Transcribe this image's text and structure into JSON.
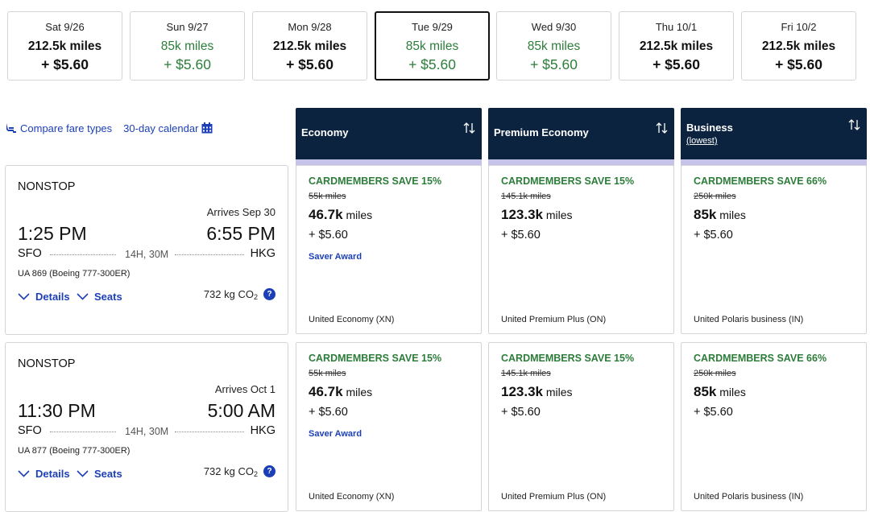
{
  "dates": [
    {
      "date": "Sat 9/26",
      "miles": "212.5k miles",
      "tax": "+ $5.60",
      "state": "normal"
    },
    {
      "date": "Sun 9/27",
      "miles": "85k miles",
      "tax": "+ $5.60",
      "state": "green"
    },
    {
      "date": "Mon 9/28",
      "miles": "212.5k miles",
      "tax": "+ $5.60",
      "state": "normal"
    },
    {
      "date": "Tue 9/29",
      "miles": "85k miles",
      "tax": "+ $5.60",
      "state": "selected"
    },
    {
      "date": "Wed 9/30",
      "miles": "85k miles",
      "tax": "+ $5.60",
      "state": "green"
    },
    {
      "date": "Thu 10/1",
      "miles": "212.5k miles",
      "tax": "+ $5.60",
      "state": "normal"
    },
    {
      "date": "Fri 10/2",
      "miles": "212.5k miles",
      "tax": "+ $5.60",
      "state": "normal"
    }
  ],
  "toolbar": {
    "compare_label": "Compare fare types",
    "compare_icon": "seat-icon",
    "calendar_label": "30-day calendar",
    "calendar_icon": "calendar-icon"
  },
  "columns": [
    {
      "label": "Economy",
      "sub": ""
    },
    {
      "label": "Premium Economy",
      "sub": ""
    },
    {
      "label": "Business",
      "sub": "(lowest)"
    }
  ],
  "flights": [
    {
      "stops": "NONSTOP",
      "arrives": "Arrives Sep 30",
      "dep_time": "1:25 PM",
      "arr_time": "6:55 PM",
      "origin": "SFO",
      "dest": "HKG",
      "duration": "14H, 30M",
      "aircraft": "UA 869 (Boeing 777-300ER)",
      "details_label": "Details",
      "seats_label": "Seats",
      "co2_value": "732 kg CO",
      "co2_sub": "2",
      "info_label": "?",
      "fares": [
        {
          "save": "CARDMEMBERS SAVE 15%",
          "old": "55k miles",
          "miles": "46.7k",
          "unit": "miles",
          "tax": "+ $5.60",
          "award": "Saver Award",
          "fare_class": "United Economy (XN)"
        },
        {
          "save": "CARDMEMBERS SAVE 15%",
          "old": "145.1k miles",
          "miles": "123.3k",
          "unit": "miles",
          "tax": "+ $5.60",
          "award": "",
          "fare_class": "United Premium Plus (ON)"
        },
        {
          "save": "CARDMEMBERS SAVE 66%",
          "old": "250k miles",
          "miles": "85k",
          "unit": "miles",
          "tax": "+ $5.60",
          "award": "",
          "fare_class": "United Polaris business (IN)"
        }
      ]
    },
    {
      "stops": "NONSTOP",
      "arrives": "Arrives Oct 1",
      "dep_time": "11:30 PM",
      "arr_time": "5:00 AM",
      "origin": "SFO",
      "dest": "HKG",
      "duration": "14H, 30M",
      "aircraft": "UA 877 (Boeing 777-300ER)",
      "details_label": "Details",
      "seats_label": "Seats",
      "co2_value": "732 kg CO",
      "co2_sub": "2",
      "info_label": "?",
      "fares": [
        {
          "save": "CARDMEMBERS SAVE 15%",
          "old": "55k miles",
          "miles": "46.7k",
          "unit": "miles",
          "tax": "+ $5.60",
          "award": "Saver Award",
          "fare_class": "United Economy (XN)"
        },
        {
          "save": "CARDMEMBERS SAVE 15%",
          "old": "145.1k miles",
          "miles": "123.3k",
          "unit": "miles",
          "tax": "+ $5.60",
          "award": "",
          "fare_class": "United Premium Plus (ON)"
        },
        {
          "save": "CARDMEMBERS SAVE 66%",
          "old": "250k miles",
          "miles": "85k",
          "unit": "miles",
          "tax": "+ $5.60",
          "award": "",
          "fare_class": "United Polaris business (IN)"
        }
      ]
    }
  ],
  "colors": {
    "navy": "#0c2340",
    "stripe": "#c5c3e9",
    "green": "#2d7d3a",
    "link": "#1c3fb8"
  }
}
